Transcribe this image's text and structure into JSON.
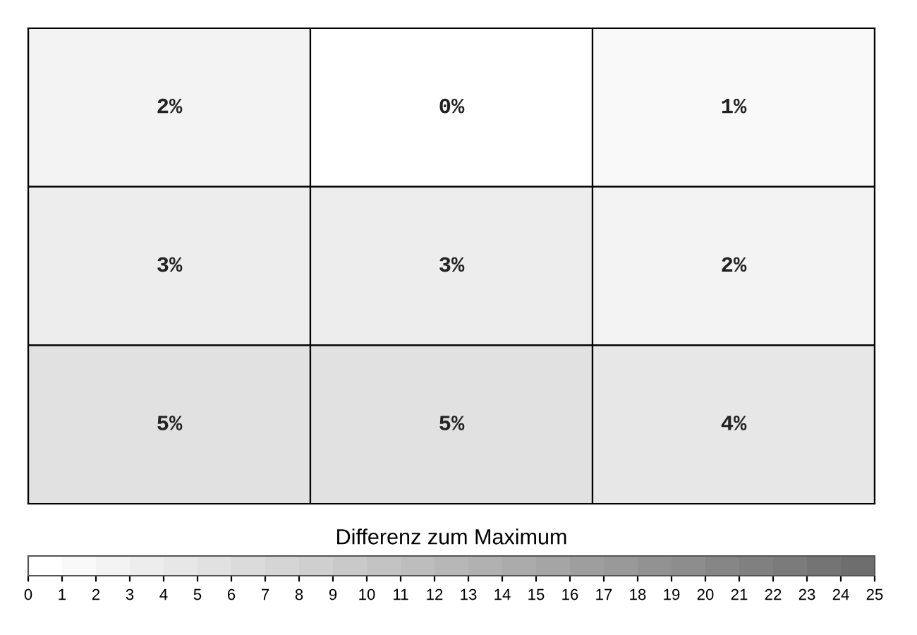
{
  "chart_data": {
    "type": "heatmap",
    "categories": [
      null,
      null,
      null
    ],
    "y_categories": [
      null,
      null,
      null
    ],
    "cells": [
      [
        2,
        0,
        1
      ],
      [
        3,
        3,
        2
      ],
      [
        5,
        5,
        4
      ]
    ],
    "cell_labels": [
      [
        "2%",
        "0%",
        "1%"
      ],
      [
        "3%",
        "3%",
        "2%"
      ],
      [
        "5%",
        "5%",
        "4%"
      ]
    ],
    "clabel": "Differenz zum Maximum",
    "clim": [
      0,
      25
    ],
    "cticks": [
      0,
      1,
      2,
      3,
      4,
      5,
      6,
      7,
      8,
      9,
      10,
      11,
      12,
      13,
      14,
      15,
      16,
      17,
      18,
      19,
      20,
      21,
      22,
      23,
      24,
      25
    ]
  }
}
